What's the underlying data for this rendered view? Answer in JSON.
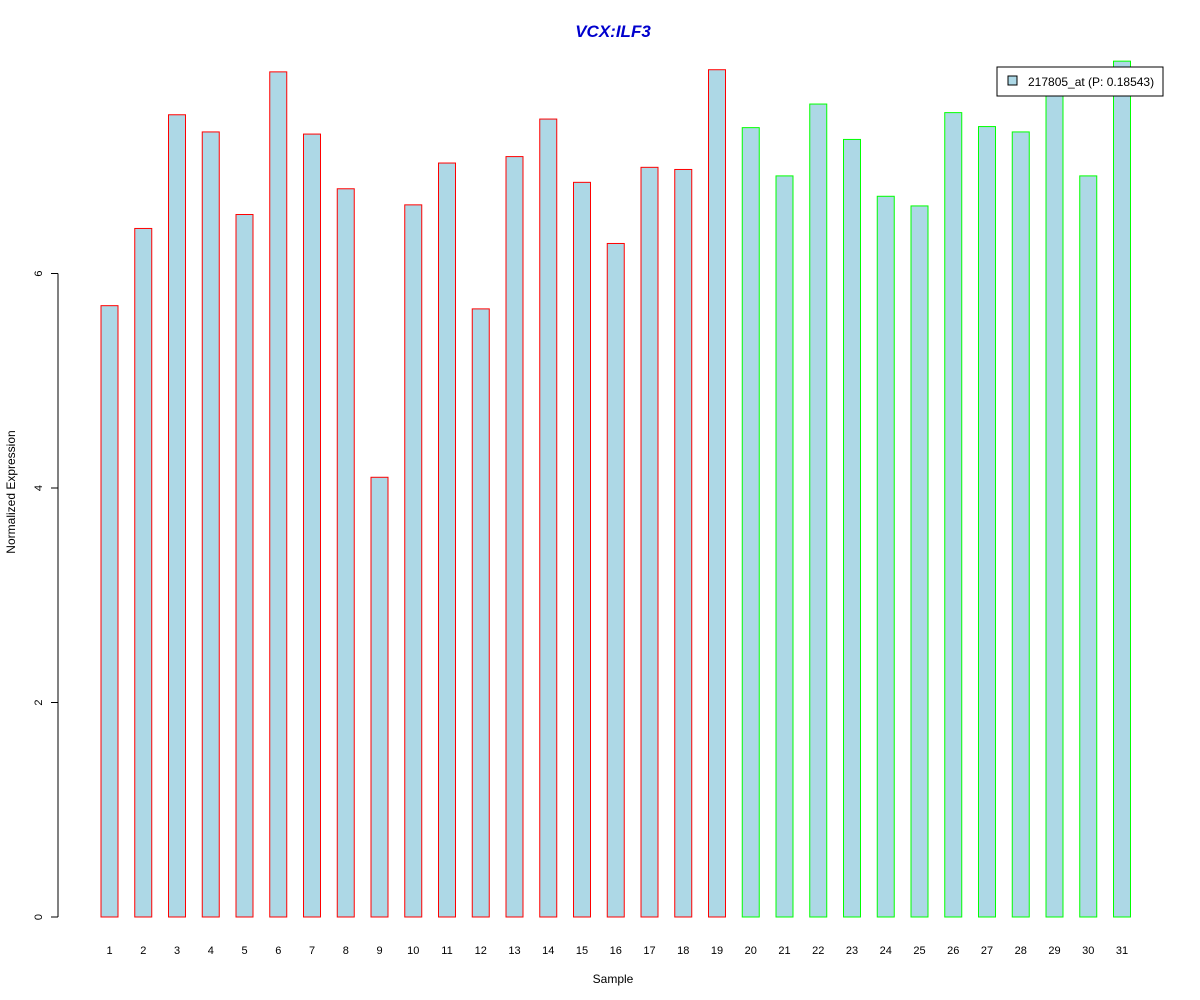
{
  "chart_data": {
    "type": "bar",
    "title": "VCX:ILF3",
    "xlabel": "Sample",
    "ylabel": "Normalized Expression",
    "ylim": [
      0,
      8
    ],
    "yticks": [
      0,
      2,
      4,
      6
    ],
    "grid": false,
    "legend_position": "top-right",
    "categories": [
      "1",
      "2",
      "3",
      "4",
      "5",
      "6",
      "7",
      "8",
      "9",
      "10",
      "11",
      "12",
      "13",
      "14",
      "15",
      "16",
      "17",
      "18",
      "19",
      "20",
      "21",
      "22",
      "23",
      "24",
      "25",
      "26",
      "27",
      "28",
      "29",
      "30",
      "31"
    ],
    "series": [
      {
        "name": "217805_at (P: 0.18543)",
        "values": [
          5.7,
          6.42,
          7.48,
          7.32,
          6.55,
          7.88,
          7.3,
          6.79,
          4.1,
          6.64,
          7.03,
          5.67,
          7.09,
          7.44,
          6.85,
          6.28,
          6.99,
          6.97,
          7.9,
          7.36,
          6.91,
          7.58,
          7.25,
          6.72,
          6.63,
          7.5,
          7.37,
          7.32,
          7.7,
          6.91,
          7.98
        ]
      }
    ],
    "group_of_bar": [
      "a",
      "a",
      "a",
      "a",
      "a",
      "a",
      "a",
      "a",
      "a",
      "a",
      "a",
      "a",
      "a",
      "a",
      "a",
      "a",
      "a",
      "a",
      "a",
      "b",
      "b",
      "b",
      "b",
      "b",
      "b",
      "b",
      "b",
      "b",
      "b",
      "b",
      "b"
    ]
  },
  "colors": {
    "bar_fill": "#add8e6",
    "group_a_border": "#ff0000",
    "group_b_border": "#00ff00",
    "title": "#0000cd",
    "axis": "#000000"
  }
}
